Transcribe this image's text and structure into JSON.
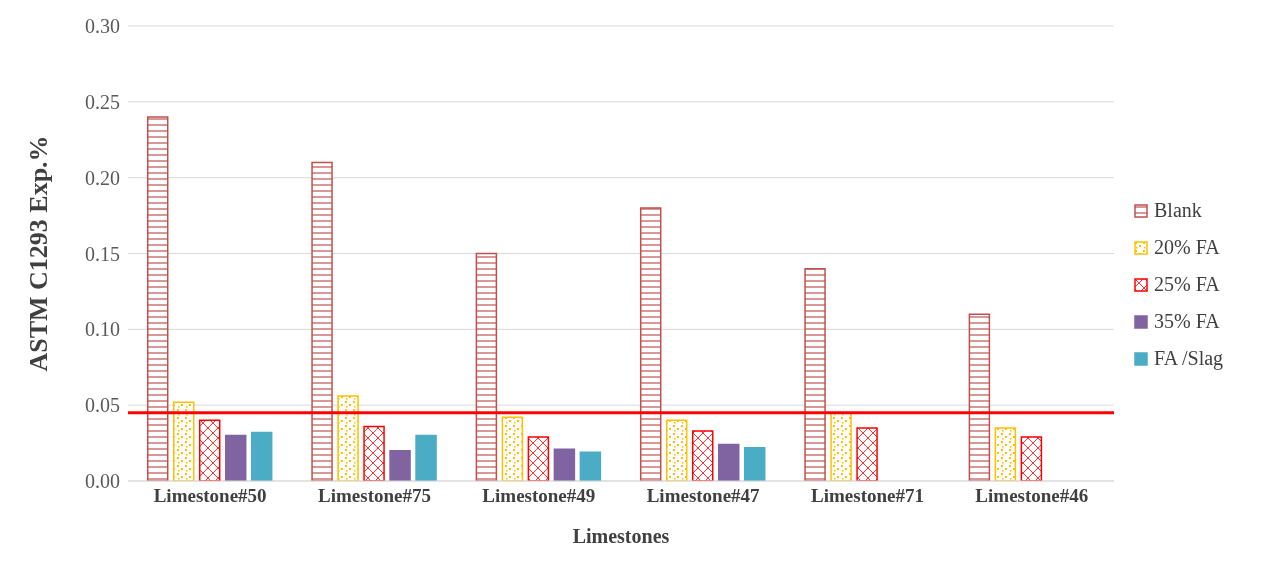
{
  "chart_data": {
    "type": "bar",
    "xlabel": "Limestones",
    "ylabel": "ASTM C1293 Exp.%",
    "categories": [
      "Limestone#50",
      "Limestone#75",
      "Limestone#49",
      "Limestone#47",
      "Limestone#71",
      "Limestone#46"
    ],
    "series": [
      {
        "name": "Blank",
        "color": "#c0504d",
        "values": [
          0.24,
          0.21,
          0.15,
          0.18,
          0.14,
          0.11
        ]
      },
      {
        "name": "20% FA",
        "color": "#ffc000",
        "values": [
          0.052,
          0.056,
          0.042,
          0.04,
          0.045,
          0.035
        ]
      },
      {
        "name": "25% FA",
        "color": "#ff0000",
        "values": [
          0.04,
          0.036,
          0.029,
          0.033,
          0.035,
          0.029
        ]
      },
      {
        "name": "35% FA",
        "color": "#8064a2",
        "values": [
          0.03,
          0.02,
          0.021,
          0.024,
          null,
          null
        ]
      },
      {
        "name": "FA /Slag",
        "color": "#4bacc6",
        "values": [
          0.032,
          0.03,
          0.019,
          0.022,
          null,
          null
        ]
      }
    ],
    "ylim": [
      0,
      0.3
    ],
    "yticks": [
      {
        "value": 0,
        "label": "0.00"
      },
      {
        "value": 0.05,
        "label": "0.05"
      },
      {
        "value": 0.1,
        "label": "0.10"
      },
      {
        "value": 0.15,
        "label": "0.15"
      },
      {
        "value": 0.2,
        "label": "0.20"
      },
      {
        "value": 0.25,
        "label": "0.25"
      },
      {
        "value": 0.3,
        "label": "0.30"
      }
    ],
    "grid": "y",
    "legend": "right",
    "ref_lines": [
      {
        "axis": "y",
        "value": 0.045,
        "color": "#ff0000"
      }
    ]
  }
}
